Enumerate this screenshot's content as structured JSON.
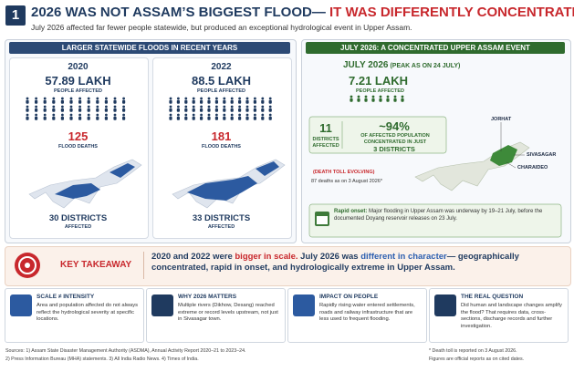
{
  "header": {
    "number": "1",
    "title_main": "2026 WAS NOT ASSAM’S BIGGEST FLOOD—",
    "title_highlight": " IT WAS DIFFERENTLY CONCENTRATED",
    "subtitle": "July 2026 affected far fewer people statewide, but produced an exceptional hydrological event in Upper Assam."
  },
  "left_panel": {
    "title": "LARGER STATEWIDE FLOODS IN RECENT YEARS",
    "cards": [
      {
        "year": "2020",
        "people": "57.89 LAKH",
        "people_label": "PEOPLE AFFECTED",
        "deaths": "125",
        "deaths_label": "FLOOD DEATHS",
        "districts": "30 DISTRICTS",
        "districts_label": "AFFECTED"
      },
      {
        "year": "2022",
        "people": "88.5 LAKH",
        "people_label": "PEOPLE AFFECTED",
        "deaths": "181",
        "deaths_label": "FLOOD DEATHS",
        "districts": "33 DISTRICTS",
        "districts_label": "AFFECTED"
      }
    ]
  },
  "right_panel": {
    "title": "JULY 2026: A CONCENTRATED UPPER ASSAM EVENT",
    "heading": "JULY 2026",
    "heading_note": " (PEAK AS ON 24 JULY)",
    "people": "7.21 LAKH",
    "people_label": "PEOPLE AFFECTED",
    "districts": "11",
    "districts_label": "DISTRICTS AFFECTED",
    "share": "~94%",
    "share_label": "OF AFFECTED POPULATION CONCENTRATED IN JUST",
    "share_districts": "3 DISTRICTS",
    "death_note": "(DEATH TOLL EVOLVING)",
    "death_text": "87 deaths as on 3 August 2026*",
    "map_labels": [
      "JORHAT",
      "SIVASAGAR",
      "CHARAIDEO"
    ],
    "onset_lead": "Rapid onset:",
    "onset_text": " Major flooding in Upper Assam was underway by 19–21 July, before the documented Doyang reservoir releases on 23 July."
  },
  "takeaway": {
    "label": "KEY TAKEAWAY",
    "parts": [
      "2020 and 2022 were ",
      "bigger in scale.",
      " July 2026 was ",
      "different in character",
      "— geographically concentrated, rapid in onset, and hydrologically extreme in Upper Assam."
    ]
  },
  "boxes": [
    {
      "title": "SCALE ≠ INTENSITY",
      "text": "Area and population affected do not always reflect the hydrological severity at specific locations."
    },
    {
      "title": "WHY 2026 MATTERS",
      "text": "Multiple rivers (Dikhow, Desang) reached extreme or record levels upstream, not just in Sivasagar town."
    },
    {
      "title": "IMPACT ON PEOPLE",
      "text": "Rapidly rising water entered settlements, roads and railway infrastructure that are less used to frequent flooding."
    },
    {
      "title": "THE REAL QUESTION",
      "text": "Did human and landscape changes amplify the flood? That requires data, cross-sections, discharge records and further investigation."
    }
  ],
  "footer": {
    "sources": [
      "Sources: 1) Assam State Disaster Management Authority (ASDMA), Annual Activity Report 2020–21 to 2023–24.",
      "2) Press Information Bureau (MHA) statements.  3) All India Radio News.  4) Times of India."
    ],
    "notes": [
      "* Death toll is reported on 3 August 2026.",
      "Figures are official reports as on cited dates."
    ]
  }
}
